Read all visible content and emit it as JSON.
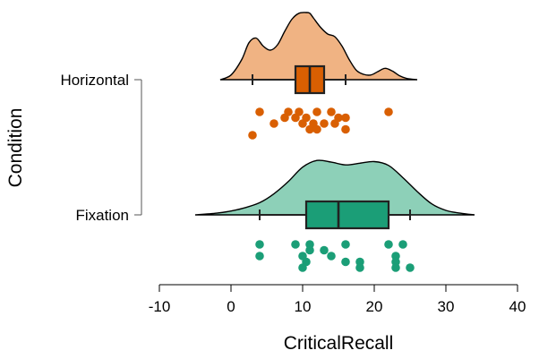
{
  "chart_data": {
    "type": "raincloud",
    "xlabel": "CriticalRecall",
    "ylabel": "Condition",
    "xlim": [
      -10,
      40
    ],
    "x_ticks": [
      -10,
      0,
      10,
      20,
      30,
      40
    ],
    "grid": false,
    "legend": "none",
    "groups": [
      {
        "name": "Horizontal",
        "fill": "#F0B383",
        "dark": "#D95F02",
        "box": {
          "min": 3,
          "q1": 9,
          "median": 11,
          "q3": 13,
          "max": 16
        },
        "density": {
          "x": [
            -1.5,
            0,
            1.5,
            2.5,
            3.5,
            4.5,
            5.5,
            6.5,
            7.5,
            8.5,
            9.5,
            10.5,
            11,
            11.5,
            12.5,
            13.5,
            14.5,
            15.5,
            16.5,
            17.5,
            18.5,
            19.5,
            20.5,
            21.5,
            22.5,
            23.5,
            24.5,
            26
          ],
          "y": [
            0.0,
            0.07,
            0.3,
            0.55,
            0.62,
            0.5,
            0.44,
            0.52,
            0.72,
            0.9,
            0.99,
            1.0,
            0.99,
            0.92,
            0.78,
            0.68,
            0.64,
            0.5,
            0.3,
            0.14,
            0.08,
            0.07,
            0.12,
            0.17,
            0.13,
            0.06,
            0.02,
            0.0
          ]
        },
        "points": [
          {
            "x": 3,
            "row": 4
          },
          {
            "x": 4,
            "row": 0
          },
          {
            "x": 6,
            "row": 2
          },
          {
            "x": 7.5,
            "row": 1
          },
          {
            "x": 8,
            "row": 0
          },
          {
            "x": 9,
            "row": 1
          },
          {
            "x": 9.5,
            "row": 0
          },
          {
            "x": 10,
            "row": 2
          },
          {
            "x": 10.5,
            "row": 1
          },
          {
            "x": 11,
            "row": 3
          },
          {
            "x": 11.5,
            "row": 2
          },
          {
            "x": 12,
            "row": 0
          },
          {
            "x": 12,
            "row": 3
          },
          {
            "x": 13,
            "row": 2
          },
          {
            "x": 14,
            "row": 0
          },
          {
            "x": 14.5,
            "row": 2
          },
          {
            "x": 15,
            "row": 1
          },
          {
            "x": 16,
            "row": 1
          },
          {
            "x": 16,
            "row": 3
          },
          {
            "x": 22,
            "row": 0
          }
        ]
      },
      {
        "name": "Fixation",
        "fill": "#8DD0B8",
        "dark": "#1B9E77",
        "box": {
          "min": 4,
          "q1": 10.5,
          "median": 15,
          "q3": 22,
          "max": 25
        },
        "density": {
          "x": [
            -5,
            -2,
            0,
            2,
            4,
            6,
            8,
            10,
            12,
            14,
            16,
            18,
            20,
            22,
            24,
            26,
            28,
            30,
            32,
            34
          ],
          "y": [
            0.0,
            0.03,
            0.07,
            0.13,
            0.22,
            0.38,
            0.6,
            0.86,
            0.98,
            0.95,
            0.9,
            0.93,
            0.96,
            0.89,
            0.67,
            0.42,
            0.2,
            0.08,
            0.03,
            0.0
          ]
        },
        "points": [
          {
            "x": 4,
            "row": 0
          },
          {
            "x": 4,
            "row": 2
          },
          {
            "x": 9,
            "row": 0
          },
          {
            "x": 10,
            "row": 2
          },
          {
            "x": 10,
            "row": 4
          },
          {
            "x": 10.5,
            "row": 3
          },
          {
            "x": 11,
            "row": 0
          },
          {
            "x": 11,
            "row": 1
          },
          {
            "x": 13,
            "row": 1
          },
          {
            "x": 14,
            "row": 2
          },
          {
            "x": 16,
            "row": 0
          },
          {
            "x": 16,
            "row": 3
          },
          {
            "x": 18,
            "row": 3
          },
          {
            "x": 18,
            "row": 4
          },
          {
            "x": 22,
            "row": 0
          },
          {
            "x": 23,
            "row": 2
          },
          {
            "x": 23,
            "row": 3
          },
          {
            "x": 23,
            "row": 4
          },
          {
            "x": 24,
            "row": 0
          },
          {
            "x": 25,
            "row": 4
          }
        ]
      }
    ]
  }
}
